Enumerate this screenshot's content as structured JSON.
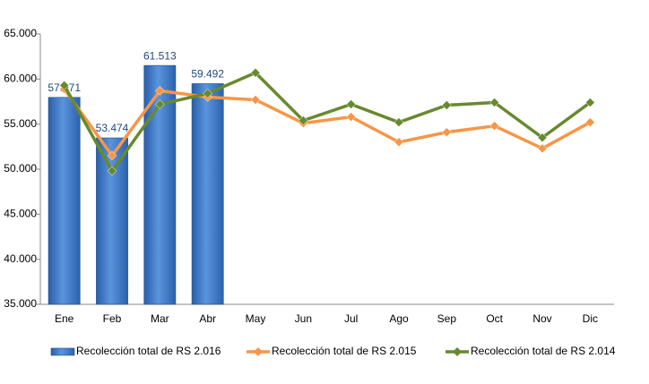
{
  "chart_data": {
    "type": "bar-line",
    "categories": [
      "Ene",
      "Feb",
      "Mar",
      "Abr",
      "May",
      "Jun",
      "Jul",
      "Ago",
      "Sep",
      "Oct",
      "Nov",
      "Dic"
    ],
    "series": [
      {
        "name": "Recolección total de RS 2.016",
        "type": "bar",
        "color": "#3d76c2",
        "values": [
          57971,
          53474,
          61513,
          59492,
          null,
          null,
          null,
          null,
          null,
          null,
          null,
          null
        ],
        "value_labels": [
          "57.971",
          "53.474",
          "61.513",
          "59.492",
          null,
          null,
          null,
          null,
          null,
          null,
          null,
          null
        ]
      },
      {
        "name": "Recolección total de RS 2.015",
        "type": "line",
        "color": "#f79646",
        "values": [
          58900,
          51500,
          58700,
          58000,
          57700,
          55100,
          55800,
          53000,
          54100,
          54800,
          52300,
          55200
        ]
      },
      {
        "name": "Recolección total de RS 2.014",
        "type": "line",
        "color": "#678a2e",
        "values": [
          59300,
          49800,
          57200,
          58400,
          60700,
          55400,
          57200,
          55200,
          57100,
          57400,
          53500,
          57400
        ]
      }
    ],
    "ylim": [
      35000,
      65000
    ],
    "yticks": [
      {
        "value": 35000,
        "label": "35.000"
      },
      {
        "value": 40000,
        "label": "40.000"
      },
      {
        "value": 45000,
        "label": "45.000"
      },
      {
        "value": 50000,
        "label": "50.000"
      },
      {
        "value": 55000,
        "label": "55.000"
      },
      {
        "value": 60000,
        "label": "60.000"
      },
      {
        "value": 65000,
        "label": "65.000"
      }
    ],
    "grid": false,
    "legend": "bottom"
  }
}
